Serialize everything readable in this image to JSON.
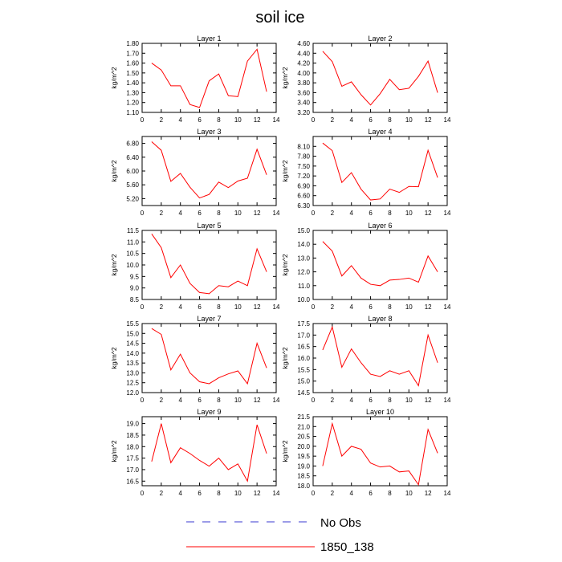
{
  "title": "soil ice",
  "legend": [
    {
      "label": "No Obs",
      "color": "#3a3ad0",
      "dashed": true
    },
    {
      "label": "1850_138",
      "color": "#ff0000",
      "dashed": false
    }
  ],
  "series_color": "#ff0000",
  "chart_data": [
    {
      "type": "line",
      "title": "Layer 1",
      "ylabel": "kg/m^2",
      "xlim": [
        0,
        14
      ],
      "xticks": [
        0,
        2,
        4,
        6,
        8,
        10,
        12,
        14
      ],
      "ylim": [
        1.1,
        1.8
      ],
      "yticks": [
        "1.10",
        "1.20",
        "1.30",
        "1.40",
        "1.50",
        "1.60",
        "1.70",
        "1.80"
      ],
      "x": [
        1,
        2,
        3,
        4,
        5,
        6,
        7,
        8,
        9,
        10,
        11,
        12,
        13
      ],
      "series": [
        {
          "name": "1850_138",
          "values": [
            1.6,
            1.53,
            1.37,
            1.37,
            1.18,
            1.15,
            1.42,
            1.49,
            1.27,
            1.26,
            1.62,
            1.74,
            1.31
          ]
        }
      ]
    },
    {
      "type": "line",
      "title": "Layer 2",
      "ylabel": "kg/m^2",
      "xlim": [
        0,
        14
      ],
      "xticks": [
        0,
        2,
        4,
        6,
        8,
        10,
        12,
        14
      ],
      "ylim": [
        3.2,
        4.6
      ],
      "yticks": [
        "3.20",
        "3.40",
        "3.60",
        "3.80",
        "4.00",
        "4.20",
        "4.40",
        "4.60"
      ],
      "x": [
        1,
        2,
        3,
        4,
        5,
        6,
        7,
        8,
        9,
        10,
        11,
        12,
        13
      ],
      "series": [
        {
          "name": "1850_138",
          "values": [
            4.44,
            4.23,
            3.73,
            3.82,
            3.56,
            3.35,
            3.58,
            3.87,
            3.66,
            3.69,
            3.93,
            4.24,
            3.6
          ]
        }
      ]
    },
    {
      "type": "line",
      "title": "Layer 3",
      "ylabel": "kg/m^2",
      "xlim": [
        0,
        14
      ],
      "xticks": [
        0,
        2,
        4,
        6,
        8,
        10,
        12,
        14
      ],
      "ylim": [
        5.0,
        7.0
      ],
      "yticks": [
        "5.20",
        "5.60",
        "6.00",
        "6.40",
        "6.80"
      ],
      "ytick_values": [
        5.2,
        5.6,
        6.0,
        6.4,
        6.8
      ],
      "x": [
        1,
        2,
        3,
        4,
        5,
        6,
        7,
        8,
        9,
        10,
        11,
        12,
        13
      ],
      "series": [
        {
          "name": "1850_138",
          "values": [
            6.85,
            6.6,
            5.7,
            5.93,
            5.53,
            5.22,
            5.32,
            5.68,
            5.52,
            5.71,
            5.79,
            6.63,
            5.89
          ]
        }
      ]
    },
    {
      "type": "line",
      "title": "Layer 4",
      "ylabel": "kg/m^2",
      "xlim": [
        0,
        14
      ],
      "xticks": [
        0,
        2,
        4,
        6,
        8,
        10,
        12,
        14
      ],
      "ylim": [
        6.3,
        8.4
      ],
      "yticks": [
        "6.30",
        "6.60",
        "6.90",
        "7.20",
        "7.50",
        "7.80",
        "8.10"
      ],
      "ytick_values": [
        6.3,
        6.6,
        6.9,
        7.2,
        7.5,
        7.8,
        8.1
      ],
      "x": [
        1,
        2,
        3,
        4,
        5,
        6,
        7,
        8,
        9,
        10,
        11,
        12,
        13
      ],
      "series": [
        {
          "name": "1850_138",
          "values": [
            8.2,
            7.97,
            7.0,
            7.3,
            6.8,
            6.47,
            6.5,
            6.8,
            6.7,
            6.88,
            6.87,
            7.98,
            7.15
          ]
        }
      ]
    },
    {
      "type": "line",
      "title": "Layer 5",
      "ylabel": "kg/m^2",
      "xlim": [
        0,
        14
      ],
      "xticks": [
        0,
        2,
        4,
        6,
        8,
        10,
        12,
        14
      ],
      "ylim": [
        8.5,
        11.5
      ],
      "yticks": [
        "8.5",
        "9.0",
        "9.5",
        "10.0",
        "10.5",
        "11.0",
        "11.5"
      ],
      "x": [
        1,
        2,
        3,
        4,
        5,
        6,
        7,
        8,
        9,
        10,
        11,
        12,
        13
      ],
      "series": [
        {
          "name": "1850_138",
          "values": [
            11.35,
            10.75,
            9.45,
            10.0,
            9.2,
            8.8,
            8.75,
            9.1,
            9.05,
            9.3,
            9.1,
            10.7,
            9.7
          ]
        }
      ]
    },
    {
      "type": "line",
      "title": "Layer 6",
      "ylabel": "kg/m^2",
      "xlim": [
        0,
        14
      ],
      "xticks": [
        0,
        2,
        4,
        6,
        8,
        10,
        12,
        14
      ],
      "ylim": [
        10.0,
        15.0
      ],
      "yticks": [
        "10.0",
        "11.0",
        "12.0",
        "13.0",
        "14.0",
        "15.0"
      ],
      "x": [
        1,
        2,
        3,
        4,
        5,
        6,
        7,
        8,
        9,
        10,
        11,
        12,
        13
      ],
      "series": [
        {
          "name": "1850_138",
          "values": [
            14.2,
            13.5,
            11.7,
            12.45,
            11.55,
            11.1,
            11.0,
            11.4,
            11.45,
            11.55,
            11.25,
            13.15,
            12.0
          ]
        }
      ]
    },
    {
      "type": "line",
      "title": "Layer 7",
      "ylabel": "kg/m^2",
      "xlim": [
        0,
        14
      ],
      "xticks": [
        0,
        2,
        4,
        6,
        8,
        10,
        12,
        14
      ],
      "ylim": [
        12.0,
        15.5
      ],
      "yticks": [
        "12.0",
        "12.5",
        "13.0",
        "13.5",
        "14.0",
        "14.5",
        "15.0",
        "15.5"
      ],
      "x": [
        1,
        2,
        3,
        4,
        5,
        6,
        7,
        8,
        9,
        10,
        11,
        12,
        13
      ],
      "series": [
        {
          "name": "1850_138",
          "values": [
            15.25,
            14.95,
            13.15,
            13.95,
            13.0,
            12.55,
            12.45,
            12.75,
            12.95,
            13.1,
            12.45,
            14.5,
            13.25
          ]
        }
      ]
    },
    {
      "type": "line",
      "title": "Layer 8",
      "ylabel": "kg/m^2",
      "xlim": [
        0,
        14
      ],
      "xticks": [
        0,
        2,
        4,
        6,
        8,
        10,
        12,
        14
      ],
      "ylim": [
        14.5,
        17.5
      ],
      "yticks": [
        "14.5",
        "15.0",
        "15.5",
        "16.0",
        "16.5",
        "17.0",
        "17.5"
      ],
      "x": [
        1,
        2,
        3,
        4,
        5,
        6,
        7,
        8,
        9,
        10,
        11,
        12,
        13
      ],
      "series": [
        {
          "name": "1850_138",
          "values": [
            16.35,
            17.35,
            15.6,
            16.4,
            15.8,
            15.3,
            15.2,
            15.45,
            15.3,
            15.45,
            14.8,
            17.0,
            15.8
          ]
        }
      ]
    },
    {
      "type": "line",
      "title": "Layer 9",
      "ylabel": "kg/m^2",
      "xlim": [
        0,
        14
      ],
      "xticks": [
        0,
        2,
        4,
        6,
        8,
        10,
        12,
        14
      ],
      "ylim": [
        16.3,
        19.3
      ],
      "yticks": [
        "16.5",
        "17.0",
        "17.5",
        "18.0",
        "18.5",
        "19.0"
      ],
      "ytick_values": [
        16.5,
        17.0,
        17.5,
        18.0,
        18.5,
        19.0
      ],
      "x": [
        1,
        2,
        3,
        4,
        5,
        6,
        7,
        8,
        9,
        10,
        11,
        12,
        13
      ],
      "series": [
        {
          "name": "1850_138",
          "values": [
            17.35,
            19.0,
            17.3,
            17.95,
            17.7,
            17.4,
            17.15,
            17.5,
            17.0,
            17.25,
            16.5,
            18.95,
            17.7
          ]
        }
      ]
    },
    {
      "type": "line",
      "title": "Layer 10",
      "ylabel": "kg/m^2",
      "xlim": [
        0,
        14
      ],
      "xticks": [
        0,
        2,
        4,
        6,
        8,
        10,
        12,
        14
      ],
      "ylim": [
        18.0,
        21.5
      ],
      "yticks": [
        "18.0",
        "18.5",
        "19.0",
        "19.5",
        "20.0",
        "20.5",
        "21.0",
        "21.5"
      ],
      "x": [
        1,
        2,
        3,
        4,
        5,
        6,
        7,
        8,
        9,
        10,
        11,
        12,
        13
      ],
      "series": [
        {
          "name": "1850_138",
          "values": [
            19.0,
            21.15,
            19.5,
            20.0,
            19.85,
            19.15,
            18.95,
            19.0,
            18.7,
            18.75,
            18.05,
            20.85,
            19.65
          ]
        }
      ]
    }
  ]
}
